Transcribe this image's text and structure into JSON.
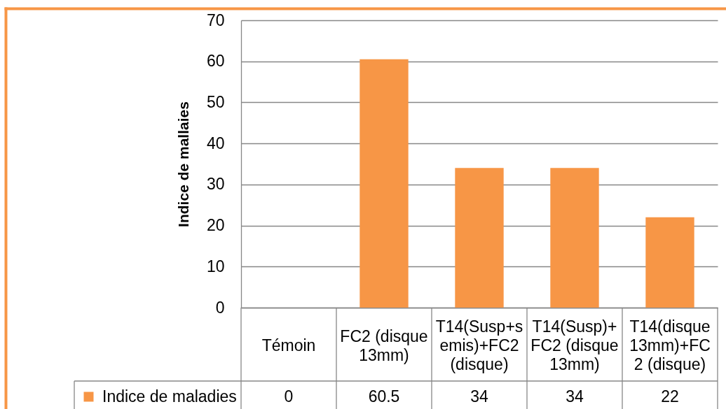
{
  "chart_data": {
    "type": "bar",
    "categories": [
      "Témoin",
      "FC2 (disque 13mm)",
      "T14(Susp+semis)+FC2 (disque)",
      "T14(Susp)+FC2 (disque 13mm)",
      "T14(disque 13mm)+FC2 (disque)"
    ],
    "series": [
      {
        "name": "Indice de maladies",
        "color": "#f79646",
        "values": [
          0,
          60.5,
          34,
          34,
          22
        ]
      }
    ],
    "ylabel": "Indice de mallaies",
    "ylim": [
      0,
      70
    ],
    "yticks": [
      0,
      10,
      20,
      30,
      40,
      50,
      60,
      70
    ],
    "grid": "y",
    "legend": "bottom left",
    "data_labels": true
  }
}
